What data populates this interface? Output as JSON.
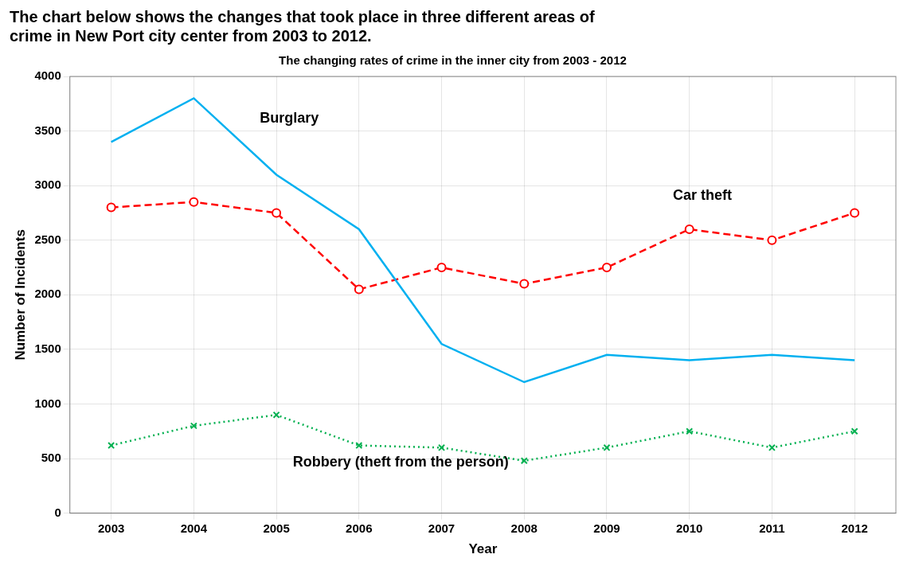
{
  "chart_data": {
    "type": "line",
    "subtitle": [
      "The chart below shows the changes that took place in three different areas of",
      "crime in New Port city center from 2003 to 2012."
    ],
    "title": "The changing rates of crime in the inner city from 2003 - 2012",
    "x_label": "Year",
    "y_label": "Number of Incidents",
    "x": [
      2003,
      2004,
      2005,
      2006,
      2007,
      2008,
      2009,
      2010,
      2011,
      2012
    ],
    "series": [
      {
        "color": "#00b0f0",
        "line_style": "solid",
        "marker": "none",
        "values": [
          3400,
          3800,
          3100,
          2600,
          1550,
          1200,
          1450,
          1400,
          1450,
          1400
        ]
      },
      {
        "color": "#ff0000",
        "line_style": "dashed",
        "marker": "circle",
        "values": [
          2800,
          2850,
          2750,
          2050,
          2250,
          2100,
          2250,
          2600,
          2500,
          2750
        ]
      },
      {
        "color": "#00b050",
        "line_style": "dotted",
        "marker": "x",
        "values": [
          620,
          800,
          900,
          620,
          600,
          480,
          600,
          750,
          600,
          750
        ]
      }
    ],
    "xlim": [
      2002.5,
      2012.5
    ],
    "xticks": [
      2003,
      2004,
      2005,
      2006,
      2007,
      2008,
      2009,
      2010,
      2011,
      2012
    ],
    "ylim": [
      0,
      4000
    ],
    "yticks": [
      0,
      500,
      1000,
      1500,
      2000,
      2500,
      3000,
      3500,
      4000
    ],
    "grid": true,
    "annotations": [
      {
        "text": "Burglary",
        "x": 2004.8,
        "y": 3580
      },
      {
        "text": "Car theft",
        "x": 2009.8,
        "y": 2870
      },
      {
        "text": "Robbery (theft from the person)",
        "x": 2005.2,
        "y": 430
      }
    ]
  }
}
